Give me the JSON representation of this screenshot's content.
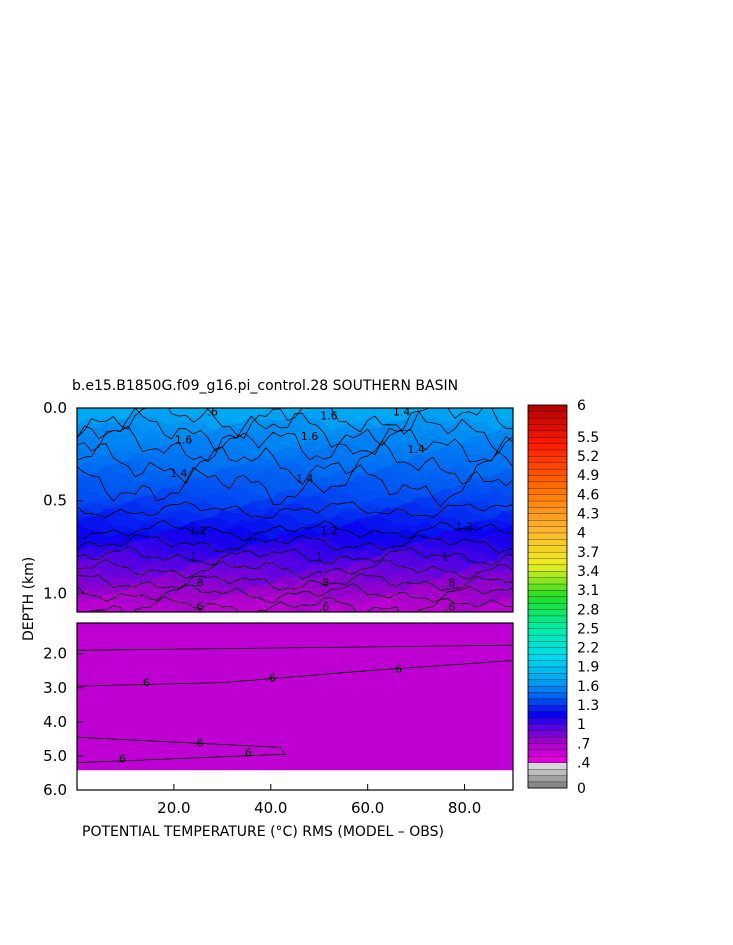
{
  "chart_data": {
    "type": "heatmap",
    "title": "b.e15.B1850G.f09_g16.pi_control.28 SOUTHERN BASIN",
    "xlabel": "POTENTIAL TEMPERATURE (°C) RMS (MODEL – OBS)",
    "ylabel": "DEPTH (km)",
    "xlim": [
      0,
      90
    ],
    "x_ticks": [
      20,
      40,
      60,
      80
    ],
    "x_tick_labels": [
      "20.0",
      "40.0",
      "60.0",
      "80.0"
    ],
    "upper_panel": {
      "ylim": [
        0,
        1.1
      ],
      "y_ticks": [
        0,
        0.5,
        1.0
      ],
      "y_tick_labels": [
        "0.0",
        "0.5",
        "1.0"
      ]
    },
    "lower_panel": {
      "ylim": [
        1.1,
        6.0
      ],
      "y_ticks": [
        2,
        3,
        4,
        5,
        6
      ],
      "y_tick_labels": [
        "2.0",
        "3.0",
        "4.0",
        "5.0",
        "6.0"
      ]
    },
    "depth_profile": [
      {
        "depth": 0.0,
        "value": 1.75
      },
      {
        "depth": 0.1,
        "value": 1.62
      },
      {
        "depth": 0.3,
        "value": 1.5
      },
      {
        "depth": 0.5,
        "value": 1.35
      },
      {
        "depth": 0.65,
        "value": 1.2
      },
      {
        "depth": 0.8,
        "value": 1.0
      },
      {
        "depth": 0.95,
        "value": 0.8
      },
      {
        "depth": 1.1,
        "value": 0.6
      },
      {
        "depth": 2.0,
        "value": 0.6
      },
      {
        "depth": 5.4,
        "value": 0.6
      }
    ],
    "contour_labels": [
      {
        "text": ".6",
        "x": 28,
        "depth": 0.02
      },
      {
        "text": "1.6",
        "x": 52,
        "depth": 0.04
      },
      {
        "text": "1.4",
        "x": 67,
        "depth": 0.02
      },
      {
        "text": "1.6",
        "x": 22,
        "depth": 0.17
      },
      {
        "text": "1.6",
        "x": 48,
        "depth": 0.15
      },
      {
        "text": "1.4",
        "x": 70,
        "depth": 0.22
      },
      {
        "text": "1.4",
        "x": 21,
        "depth": 0.35
      },
      {
        "text": "1.4",
        "x": 47,
        "depth": 0.38
      },
      {
        "text": "1.2",
        "x": 25,
        "depth": 0.66
      },
      {
        "text": "1.2",
        "x": 52,
        "depth": 0.66
      },
      {
        "text": "1.2",
        "x": 80,
        "depth": 0.64
      },
      {
        "text": "1",
        "x": 24,
        "depth": 0.8
      },
      {
        "text": "1",
        "x": 50,
        "depth": 0.8
      },
      {
        "text": "1",
        "x": 76,
        "depth": 0.8
      },
      {
        "text": ".8",
        "x": 25,
        "depth": 0.94
      },
      {
        "text": ".8",
        "x": 51,
        "depth": 0.94
      },
      {
        "text": ".8",
        "x": 77,
        "depth": 0.94
      },
      {
        "text": ".6",
        "x": 25,
        "depth": 1.07
      },
      {
        "text": ".6",
        "x": 51,
        "depth": 1.07
      },
      {
        "text": ".6",
        "x": 77,
        "depth": 1.07
      },
      {
        "text": ".6",
        "x": 14,
        "depth": 2.85
      },
      {
        "text": ".6",
        "x": 40,
        "depth": 2.7
      },
      {
        "text": ".6",
        "x": 66,
        "depth": 2.45
      },
      {
        "text": ".6",
        "x": 25,
        "depth": 4.6
      },
      {
        "text": ".6",
        "x": 35,
        "depth": 4.9
      },
      {
        "text": ".6",
        "x": 9,
        "depth": 5.08
      }
    ],
    "colorbar": {
      "labels": [
        "6",
        "5.5",
        "5.2",
        "4.9",
        "4.6",
        "4.3",
        "4",
        "3.7",
        "3.4",
        "3.1",
        "2.8",
        "2.5",
        "2.2",
        "1.9",
        "1.6",
        "1.3",
        "1",
        ".7",
        ".4",
        "0"
      ],
      "label_values": [
        6,
        5.5,
        5.2,
        4.9,
        4.6,
        4.3,
        4,
        3.7,
        3.4,
        3.1,
        2.8,
        2.5,
        2.2,
        1.9,
        1.6,
        1.3,
        1,
        0.7,
        0.4,
        0
      ],
      "range": [
        0,
        6
      ]
    }
  }
}
